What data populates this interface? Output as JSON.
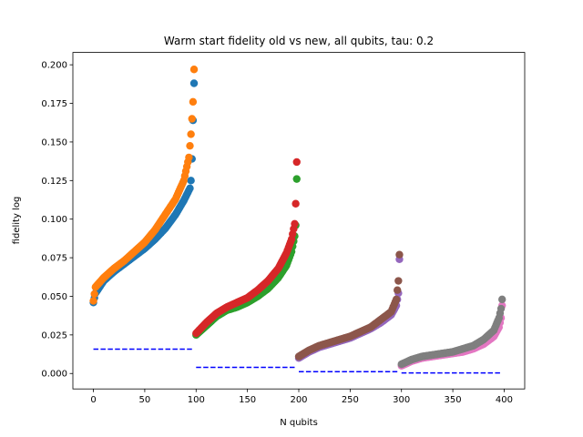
{
  "chart_data": {
    "type": "scatter",
    "title": "Warm start fidelity old vs new, all qubits, tau: 0.2",
    "xlabel": "N qubits",
    "ylabel": "fidelity log",
    "xlim": [
      -20,
      420
    ],
    "ylim": [
      -0.01,
      0.208
    ],
    "x_ticks": [
      0,
      50,
      100,
      150,
      200,
      250,
      300,
      350,
      400
    ],
    "x_tick_labels": [
      "0",
      "50",
      "100",
      "150",
      "200",
      "250",
      "300",
      "350",
      "400"
    ],
    "y_ticks": [
      0.0,
      0.025,
      0.05,
      0.075,
      0.1,
      0.125,
      0.15,
      0.175,
      0.2
    ],
    "y_tick_labels": [
      "0.000",
      "0.025",
      "0.050",
      "0.075",
      "0.100",
      "0.125",
      "0.150",
      "0.175",
      "0.200"
    ],
    "grid": false,
    "legend": "none",
    "scatter_groups": [
      {
        "color": "#1f77b4",
        "x_start": 0,
        "x_end": 98,
        "y_keypoints": [
          [
            0,
            0.046
          ],
          [
            2,
            0.052
          ],
          [
            10,
            0.06
          ],
          [
            20,
            0.066
          ],
          [
            30,
            0.071
          ],
          [
            40,
            0.076
          ],
          [
            50,
            0.081
          ],
          [
            60,
            0.087
          ],
          [
            70,
            0.094
          ],
          [
            80,
            0.103
          ],
          [
            88,
            0.112
          ],
          [
            94,
            0.12
          ],
          [
            95,
            0.125
          ],
          [
            96,
            0.139
          ],
          [
            97,
            0.164
          ],
          [
            98,
            0.188
          ]
        ]
      },
      {
        "color": "#ff7f0e",
        "x_start": 0,
        "x_end": 98,
        "y_keypoints": [
          [
            0,
            0.047
          ],
          [
            2,
            0.056
          ],
          [
            10,
            0.062
          ],
          [
            20,
            0.068
          ],
          [
            30,
            0.073
          ],
          [
            40,
            0.079
          ],
          [
            50,
            0.085
          ],
          [
            60,
            0.093
          ],
          [
            70,
            0.103
          ],
          [
            80,
            0.113
          ],
          [
            88,
            0.125
          ],
          [
            93,
            0.14
          ],
          [
            95,
            0.155
          ],
          [
            96,
            0.165
          ],
          [
            97,
            0.176
          ],
          [
            98,
            0.197
          ]
        ]
      },
      {
        "color": "#2ca02c",
        "x_start": 100,
        "x_end": 198,
        "y_keypoints": [
          [
            100,
            0.025
          ],
          [
            110,
            0.031
          ],
          [
            120,
            0.037
          ],
          [
            130,
            0.041
          ],
          [
            140,
            0.043
          ],
          [
            150,
            0.046
          ],
          [
            160,
            0.05
          ],
          [
            170,
            0.055
          ],
          [
            180,
            0.062
          ],
          [
            188,
            0.07
          ],
          [
            193,
            0.079
          ],
          [
            196,
            0.089
          ],
          [
            197,
            0.096
          ],
          [
            198,
            0.126
          ]
        ]
      },
      {
        "color": "#d62728",
        "x_start": 100,
        "x_end": 198,
        "y_keypoints": [
          [
            100,
            0.026
          ],
          [
            110,
            0.033
          ],
          [
            120,
            0.039
          ],
          [
            130,
            0.043
          ],
          [
            140,
            0.046
          ],
          [
            150,
            0.049
          ],
          [
            160,
            0.054
          ],
          [
            170,
            0.06
          ],
          [
            180,
            0.068
          ],
          [
            188,
            0.078
          ],
          [
            193,
            0.087
          ],
          [
            196,
            0.097
          ],
          [
            197,
            0.11
          ],
          [
            198,
            0.137
          ]
        ]
      },
      {
        "color": "#9467bd",
        "x_start": 200,
        "x_end": 298,
        "y_keypoints": [
          [
            200,
            0.01
          ],
          [
            210,
            0.014
          ],
          [
            220,
            0.017
          ],
          [
            230,
            0.019
          ],
          [
            240,
            0.021
          ],
          [
            250,
            0.023
          ],
          [
            260,
            0.026
          ],
          [
            270,
            0.029
          ],
          [
            280,
            0.033
          ],
          [
            290,
            0.038
          ],
          [
            295,
            0.044
          ],
          [
            297,
            0.052
          ],
          [
            298,
            0.074
          ]
        ]
      },
      {
        "color": "#8c564b",
        "x_start": 200,
        "x_end": 298,
        "y_keypoints": [
          [
            200,
            0.011
          ],
          [
            210,
            0.015
          ],
          [
            220,
            0.018
          ],
          [
            230,
            0.02
          ],
          [
            240,
            0.022
          ],
          [
            250,
            0.024
          ],
          [
            260,
            0.027
          ],
          [
            270,
            0.03
          ],
          [
            280,
            0.035
          ],
          [
            290,
            0.04
          ],
          [
            295,
            0.048
          ],
          [
            297,
            0.06
          ],
          [
            298,
            0.077
          ]
        ]
      },
      {
        "color": "#e377c2",
        "x_start": 300,
        "x_end": 398,
        "y_keypoints": [
          [
            300,
            0.005
          ],
          [
            310,
            0.008
          ],
          [
            320,
            0.01
          ],
          [
            330,
            0.011
          ],
          [
            340,
            0.012
          ],
          [
            350,
            0.013
          ],
          [
            360,
            0.014
          ],
          [
            370,
            0.016
          ],
          [
            380,
            0.019
          ],
          [
            390,
            0.024
          ],
          [
            395,
            0.03
          ],
          [
            397,
            0.036
          ],
          [
            398,
            0.044
          ]
        ]
      },
      {
        "color": "#7f7f7f",
        "x_start": 300,
        "x_end": 398,
        "y_keypoints": [
          [
            300,
            0.006
          ],
          [
            310,
            0.009
          ],
          [
            320,
            0.011
          ],
          [
            330,
            0.012
          ],
          [
            340,
            0.013
          ],
          [
            350,
            0.014
          ],
          [
            360,
            0.016
          ],
          [
            370,
            0.018
          ],
          [
            380,
            0.022
          ],
          [
            390,
            0.028
          ],
          [
            395,
            0.036
          ],
          [
            397,
            0.042
          ],
          [
            398,
            0.048
          ]
        ]
      }
    ],
    "reference_lines": [
      {
        "color": "#0000ff",
        "style": "dashed",
        "x": [
          0,
          98
        ],
        "y": 0.0158
      },
      {
        "color": "#0000ff",
        "style": "dashed",
        "x": [
          100,
          198
        ],
        "y": 0.004
      },
      {
        "color": "#0000ff",
        "style": "dashed",
        "x": [
          200,
          298
        ],
        "y": 0.0012
      },
      {
        "color": "#0000ff",
        "style": "dashed",
        "x": [
          300,
          398
        ],
        "y": 0.0004
      }
    ]
  }
}
